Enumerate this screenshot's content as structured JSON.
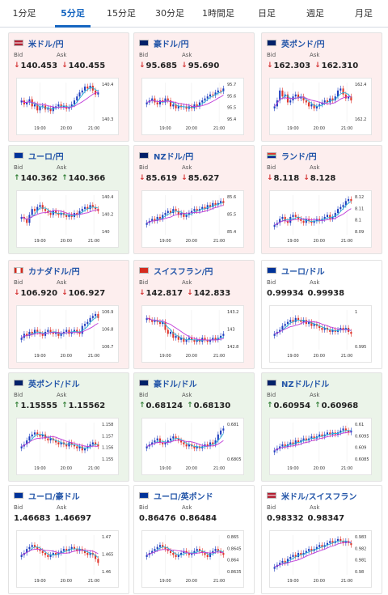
{
  "tabs": [
    "1分足",
    "5分足",
    "15分足",
    "30分足",
    "1時間足",
    "日足",
    "週足",
    "月足"
  ],
  "active_tab": 1,
  "labels": {
    "bid": "Bid",
    "ask": "Ask"
  },
  "time_labels": [
    "19:00",
    "20:00",
    "21:00"
  ],
  "colors": {
    "tab_active": "#1565c0",
    "title": "#2355a8",
    "down": "#d32f2f",
    "up": "#2e7d32",
    "candle_up": "#1f3fbf",
    "candle_down": "#e0352b",
    "ma": "#c03ad8"
  },
  "pairs": [
    {
      "name": "米ドル/円",
      "flag": "us",
      "state": "down",
      "bid": "140.453",
      "ask": "140.455",
      "ticks": [
        "140.4",
        "140.3"
      ],
      "path": [
        0.45,
        0.55,
        0.5,
        0.42,
        0.6,
        0.55,
        0.7,
        0.6,
        0.58,
        0.68,
        0.65,
        0.72,
        0.62,
        0.6,
        0.55,
        0.62,
        0.58,
        0.66,
        0.62,
        0.55,
        0.45,
        0.35,
        0.25,
        0.2,
        0.1,
        0.15,
        0.08,
        0.2,
        0.3,
        0.25
      ]
    },
    {
      "name": "豪ドル/円",
      "flag": "au",
      "state": "down",
      "bid": "95.685",
      "ask": "95.690",
      "ticks": [
        "95.7",
        "95.6",
        "95.5",
        "95.4"
      ],
      "path": [
        0.5,
        0.45,
        0.4,
        0.5,
        0.55,
        0.45,
        0.5,
        0.4,
        0.45,
        0.6,
        0.55,
        0.65,
        0.58,
        0.62,
        0.6,
        0.66,
        0.6,
        0.65,
        0.55,
        0.6,
        0.5,
        0.45,
        0.4,
        0.35,
        0.3,
        0.32,
        0.25,
        0.2,
        0.22,
        0.15
      ]
    },
    {
      "name": "英ポンド/円",
      "flag": "gb",
      "state": "down",
      "bid": "162.303",
      "ask": "162.310",
      "ticks": [
        "162.4",
        "162.2"
      ],
      "path": [
        0.6,
        0.45,
        0.2,
        0.35,
        0.3,
        0.5,
        0.45,
        0.35,
        0.3,
        0.4,
        0.35,
        0.45,
        0.5,
        0.6,
        0.55,
        0.65,
        0.6,
        0.55,
        0.5,
        0.45,
        0.5,
        0.4,
        0.45,
        0.35,
        0.2,
        0.15,
        0.3,
        0.4,
        0.35,
        0.45
      ]
    },
    {
      "name": "ユーロ/円",
      "flag": "eu",
      "state": "up",
      "bid": "140.362",
      "ask": "140.366",
      "ticks": [
        "140.4",
        "140.2",
        "140"
      ],
      "path": [
        0.55,
        0.6,
        0.7,
        0.5,
        0.35,
        0.4,
        0.3,
        0.25,
        0.35,
        0.4,
        0.45,
        0.5,
        0.4,
        0.45,
        0.5,
        0.45,
        0.5,
        0.55,
        0.5,
        0.55,
        0.45,
        0.5,
        0.4,
        0.35,
        0.3,
        0.35,
        0.25,
        0.3,
        0.35,
        0.4
      ]
    },
    {
      "name": "NZドル/円",
      "flag": "nz",
      "state": "down",
      "bid": "85.619",
      "ask": "85.627",
      "ticks": [
        "85.6",
        "85.5",
        "85.4"
      ],
      "path": [
        0.7,
        0.65,
        0.6,
        0.65,
        0.55,
        0.6,
        0.5,
        0.45,
        0.4,
        0.45,
        0.35,
        0.4,
        0.5,
        0.45,
        0.55,
        0.5,
        0.45,
        0.4,
        0.35,
        0.4,
        0.35,
        0.3,
        0.35,
        0.25,
        0.3,
        0.2,
        0.25,
        0.2,
        0.15,
        0.2
      ]
    },
    {
      "name": "ランド/円",
      "flag": "za",
      "state": "down",
      "bid": "8.118",
      "ask": "8.128",
      "ticks": [
        "8.12",
        "8.11",
        "8.1",
        "8.09"
      ],
      "path": [
        0.75,
        0.7,
        0.6,
        0.55,
        0.65,
        0.7,
        0.55,
        0.5,
        0.55,
        0.6,
        0.65,
        0.7,
        0.6,
        0.65,
        0.7,
        0.65,
        0.6,
        0.65,
        0.6,
        0.55,
        0.5,
        0.6,
        0.55,
        0.45,
        0.35,
        0.3,
        0.25,
        0.15,
        0.1,
        0.15
      ]
    },
    {
      "name": "カナダドル/円",
      "flag": "ca",
      "state": "down",
      "bid": "106.920",
      "ask": "106.927",
      "ticks": [
        "106.9",
        "106.8",
        "106.7"
      ],
      "path": [
        0.7,
        0.6,
        0.65,
        0.55,
        0.6,
        0.5,
        0.55,
        0.6,
        0.65,
        0.55,
        0.5,
        0.55,
        0.6,
        0.55,
        0.65,
        0.6,
        0.55,
        0.5,
        0.6,
        0.55,
        0.5,
        0.55,
        0.6,
        0.4,
        0.35,
        0.3,
        0.2,
        0.15,
        0.1,
        0.2
      ]
    },
    {
      "name": "スイスフラン/円",
      "flag": "ch",
      "state": "down",
      "bid": "142.817",
      "ask": "142.833",
      "ticks": [
        "143.2",
        "143",
        "142.8"
      ],
      "path": [
        0.2,
        0.25,
        0.3,
        0.25,
        0.3,
        0.35,
        0.3,
        0.5,
        0.6,
        0.55,
        0.7,
        0.65,
        0.75,
        0.7,
        0.8,
        0.75,
        0.7,
        0.75,
        0.8,
        0.75,
        0.8,
        0.7,
        0.75,
        0.8,
        0.75,
        0.7,
        0.75,
        0.7,
        0.65,
        0.6
      ]
    },
    {
      "name": "ユーロ/ドル",
      "flag": "eu",
      "state": "flat",
      "bid": "0.99934",
      "ask": "0.99938",
      "ticks": [
        "1",
        "0.995"
      ],
      "path": [
        0.6,
        0.55,
        0.5,
        0.4,
        0.35,
        0.3,
        0.25,
        0.3,
        0.2,
        0.25,
        0.3,
        0.25,
        0.35,
        0.3,
        0.4,
        0.35,
        0.4,
        0.45,
        0.5,
        0.45,
        0.5,
        0.55,
        0.5,
        0.55,
        0.5,
        0.45,
        0.5,
        0.45,
        0.55,
        0.6
      ]
    },
    {
      "name": "英ポンド/ドル",
      "flag": "gb",
      "state": "up",
      "bid": "1.15555",
      "ask": "1.15562",
      "ticks": [
        "1.158",
        "1.157",
        "1.156",
        "1.155"
      ],
      "path": [
        0.6,
        0.55,
        0.45,
        0.35,
        0.3,
        0.25,
        0.3,
        0.35,
        0.3,
        0.4,
        0.45,
        0.4,
        0.45,
        0.5,
        0.55,
        0.5,
        0.55,
        0.6,
        0.5,
        0.55,
        0.6,
        0.65,
        0.6,
        0.7,
        0.65,
        0.6,
        0.55,
        0.5,
        0.55,
        0.6
      ]
    },
    {
      "name": "豪ドル/ドル",
      "flag": "au",
      "state": "up",
      "bid": "0.68124",
      "ask": "0.68130",
      "ticks": [
        "0.681",
        "0.6805"
      ],
      "path": [
        0.6,
        0.55,
        0.5,
        0.45,
        0.4,
        0.5,
        0.55,
        0.5,
        0.45,
        0.4,
        0.35,
        0.4,
        0.45,
        0.5,
        0.55,
        0.6,
        0.55,
        0.6,
        0.65,
        0.6,
        0.65,
        0.6,
        0.55,
        0.6,
        0.5,
        0.55,
        0.45,
        0.3,
        0.2,
        0.15
      ]
    },
    {
      "name": "NZドル/ドル",
      "flag": "nz",
      "state": "up",
      "bid": "0.60954",
      "ask": "0.60968",
      "ticks": [
        "0.61",
        "0.6095",
        "0.609",
        "0.6085"
      ],
      "path": [
        0.7,
        0.65,
        0.6,
        0.55,
        0.6,
        0.55,
        0.5,
        0.55,
        0.45,
        0.5,
        0.45,
        0.4,
        0.45,
        0.4,
        0.35,
        0.4,
        0.35,
        0.3,
        0.35,
        0.3,
        0.25,
        0.3,
        0.25,
        0.3,
        0.25,
        0.2,
        0.15,
        0.2,
        0.25,
        0.2
      ]
    },
    {
      "name": "ユーロ/豪ドル",
      "flag": "eu",
      "state": "flat",
      "bid": "1.46683",
      "ask": "1.46697",
      "ticks": [
        "1.47",
        "1.465",
        "1.46"
      ],
      "path": [
        0.5,
        0.45,
        0.35,
        0.3,
        0.25,
        0.3,
        0.35,
        0.4,
        0.45,
        0.5,
        0.55,
        0.5,
        0.45,
        0.5,
        0.45,
        0.4,
        0.35,
        0.4,
        0.35,
        0.3,
        0.35,
        0.4,
        0.35,
        0.4,
        0.45,
        0.5,
        0.45,
        0.5,
        0.6,
        0.7
      ]
    },
    {
      "name": "ユーロ/英ポンド",
      "flag": "eu",
      "state": "flat",
      "bid": "0.86476",
      "ask": "0.86484",
      "ticks": [
        "0.865",
        "0.8645",
        "0.864",
        "0.8635"
      ],
      "path": [
        0.5,
        0.45,
        0.4,
        0.35,
        0.3,
        0.25,
        0.3,
        0.35,
        0.4,
        0.45,
        0.5,
        0.55,
        0.5,
        0.45,
        0.4,
        0.45,
        0.5,
        0.45,
        0.4,
        0.35,
        0.4,
        0.45,
        0.5,
        0.55,
        0.45,
        0.4,
        0.35,
        0.4,
        0.45,
        0.5
      ]
    },
    {
      "name": "米ドル/スイスフラン",
      "flag": "us",
      "state": "flat",
      "bid": "0.98332",
      "ask": "0.98347",
      "ticks": [
        "0.983",
        "0.982",
        "0.981",
        "0.98"
      ],
      "path": [
        0.8,
        0.75,
        0.7,
        0.65,
        0.7,
        0.6,
        0.55,
        0.5,
        0.55,
        0.45,
        0.5,
        0.45,
        0.4,
        0.35,
        0.4,
        0.35,
        0.3,
        0.25,
        0.3,
        0.25,
        0.2,
        0.15,
        0.2,
        0.15,
        0.1,
        0.15,
        0.2,
        0.15,
        0.2,
        0.25
      ]
    }
  ]
}
